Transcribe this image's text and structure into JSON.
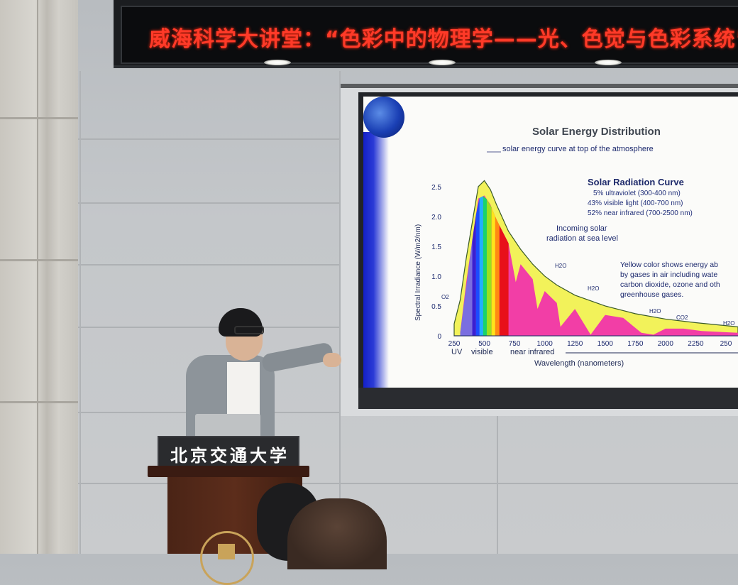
{
  "banner": {
    "text": "威海科学大讲堂：“色彩中的物理学——光、色觉与色彩系统”"
  },
  "podium": {
    "sign": "北京交通大学"
  },
  "slide": {
    "title": "Solar Energy Distribution",
    "top_curve_label": "solar energy curve at top of the atmosphere",
    "radiation_curve_title": "Solar Radiation Curve",
    "radiation_lines": [
      "5% ultraviolet (300-400 nm)",
      "43% visible light (400-700 nm)",
      "52% near infrared (700-2500 nm)"
    ],
    "incoming_label_1": "Incoming solar",
    "incoming_label_2": "radiation at sea level",
    "yellow_note": [
      "Yellow color shows energy ab",
      "by gases in air including wate",
      "carbon dioxide, ozone and oth",
      "greenhouse gases."
    ],
    "gas_labels": {
      "o2": "O2",
      "h2o_a": "H2O",
      "h2o_b": "H2O",
      "h2o_c": "H2O",
      "co2": "CO2",
      "h2o_d": "H2O"
    },
    "band_labels": {
      "uv": "UV",
      "visible": "visible",
      "near_infrared": "near infrared"
    },
    "colors": {
      "yellow_region": "#f2f25a",
      "pink_region": "#f23ea6",
      "uv_region": "#7a6ee0",
      "axis": "#1d2a6e"
    }
  },
  "chart_data": {
    "type": "area",
    "title": "Solar Energy Distribution",
    "xlabel": "Wavelength (nanometers)",
    "ylabel": "Spectral Irradiance (W/m2/nm)",
    "x_ticks": [
      "250",
      "500",
      "750",
      "1000",
      "1250",
      "1500",
      "1750",
      "2000",
      "2250",
      "250"
    ],
    "y_ticks": [
      "0",
      "0.5",
      "1.0",
      "1.5",
      "2.0",
      "2.5"
    ],
    "xlim": [
      250,
      2600
    ],
    "ylim": [
      0,
      2.7
    ],
    "series": [
      {
        "name": "solar energy curve at top of the atmosphere",
        "x": [
          250,
          300,
          350,
          400,
          450,
          500,
          550,
          600,
          700,
          800,
          900,
          1000,
          1100,
          1250,
          1500,
          1750,
          2000,
          2250,
          2600
        ],
        "y": [
          0.2,
          0.6,
          1.3,
          1.9,
          2.5,
          2.6,
          2.45,
          2.2,
          1.75,
          1.45,
          1.2,
          1.0,
          0.85,
          0.68,
          0.5,
          0.37,
          0.28,
          0.22,
          0.15
        ]
      },
      {
        "name": "Incoming solar radiation at sea level",
        "x": [
          300,
          350,
          400,
          450,
          500,
          550,
          600,
          700,
          760,
          800,
          900,
          940,
          1000,
          1100,
          1130,
          1250,
          1380,
          1500,
          1650,
          1800,
          1900,
          2000,
          2150,
          2300,
          2600
        ],
        "y": [
          0.05,
          0.9,
          1.6,
          2.3,
          2.35,
          2.2,
          1.95,
          1.55,
          0.9,
          1.2,
          0.95,
          0.45,
          0.75,
          0.55,
          0.15,
          0.45,
          0.02,
          0.35,
          0.3,
          0.05,
          0.02,
          0.12,
          0.12,
          0.08,
          0.05
        ]
      }
    ]
  }
}
